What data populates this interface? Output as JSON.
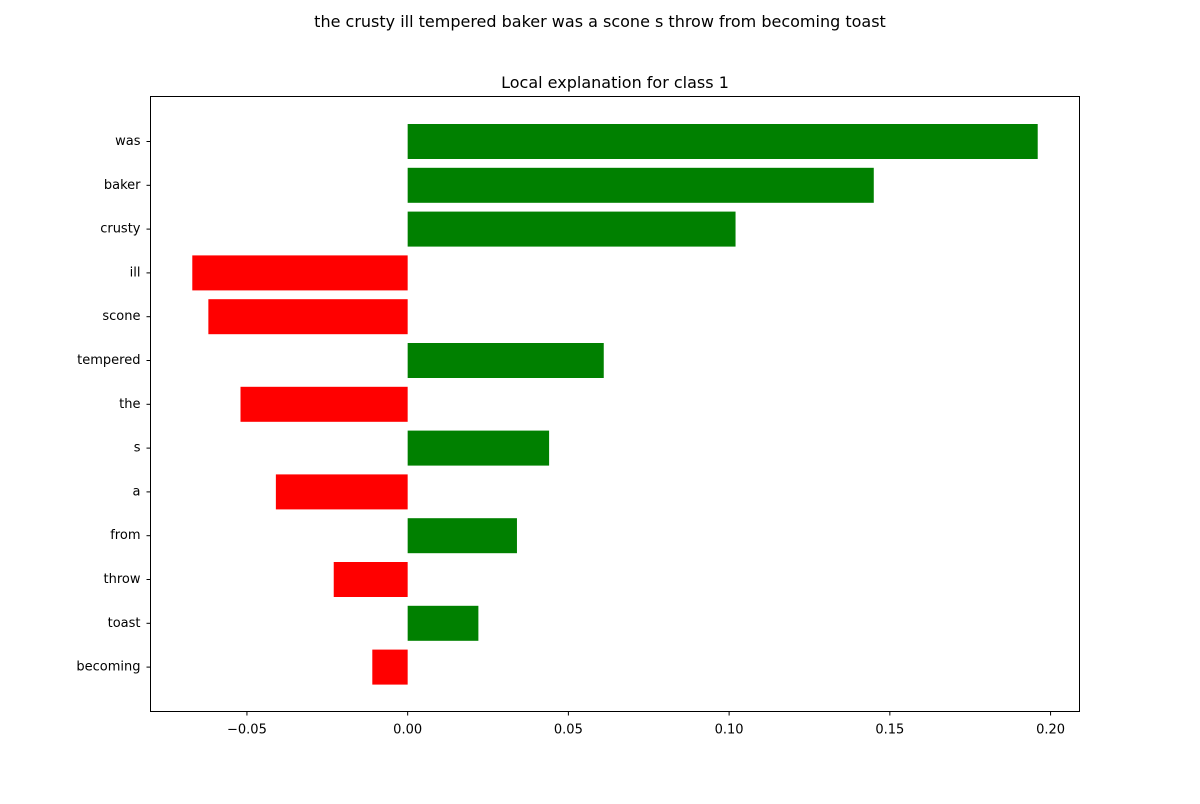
{
  "figure": {
    "suptitle": "the crusty ill tempered baker was a scone s throw from becoming toast"
  },
  "chart_data": {
    "type": "bar",
    "orientation": "horizontal",
    "title": "Local explanation for class 1",
    "xlabel": "",
    "ylabel": "",
    "xlim": [
      -0.08,
      0.209
    ],
    "xticks": [
      -0.05,
      0.0,
      0.05,
      0.1,
      0.15,
      0.2
    ],
    "xtick_labels": [
      "−0.05",
      "0.00",
      "0.05",
      "0.10",
      "0.15",
      "0.20"
    ],
    "categories": [
      "was",
      "baker",
      "crusty",
      "ill",
      "scone",
      "tempered",
      "the",
      "s",
      "a",
      "from",
      "throw",
      "toast",
      "becoming"
    ],
    "values": [
      0.196,
      0.145,
      0.102,
      -0.067,
      -0.062,
      0.061,
      -0.052,
      0.044,
      -0.041,
      0.034,
      -0.023,
      0.022,
      -0.011
    ],
    "colors": {
      "positive": "#008000",
      "negative": "#ff0000"
    },
    "grid": false,
    "legend": "none"
  }
}
